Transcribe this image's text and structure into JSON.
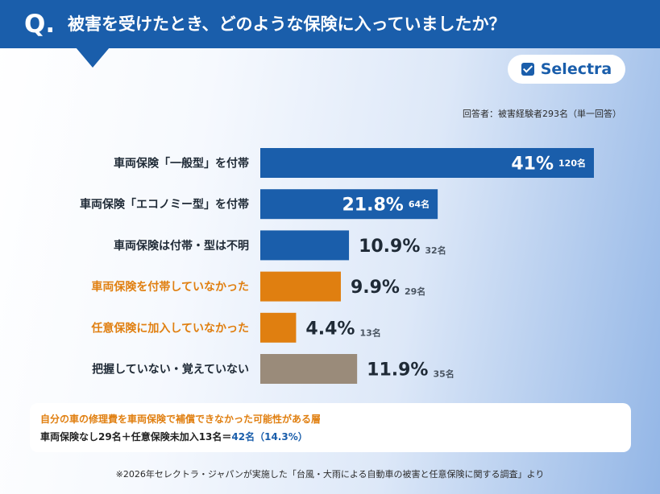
{
  "header": {
    "q_mark": "Q.",
    "title": "被害を受けたとき、どのような保険に入っていましたか？"
  },
  "logo": {
    "text": "Selectra",
    "icon": "checkbox-icon"
  },
  "respondents": "回答者：被害経験者293名（単一回答）",
  "chart_data": {
    "type": "bar",
    "orientation": "horizontal",
    "title": "被害を受けたとき、どのような保険に入っていましたか？",
    "categories": [
      "車両保険「一般型」を付帯",
      "車両保険「エコノミー型」を付帯",
      "車両保険は付帯・型は不明",
      "車両保険を付帯していなかった",
      "任意保険に加入していなかった",
      "把握していない・覚えていない"
    ],
    "values": [
      41,
      21.8,
      10.9,
      9.9,
      4.4,
      11.9
    ],
    "value_labels": [
      "41%",
      "21.8%",
      "10.9%",
      "9.9%",
      "4.4%",
      "11.9%"
    ],
    "counts": [
      "120名",
      "64名",
      "32名",
      "29名",
      "13名",
      "35名"
    ],
    "unit": "%",
    "xlim": [
      0,
      41
    ],
    "grid": false,
    "legend": "none",
    "colors": [
      "#1a5eab",
      "#1a5eab",
      "#1a5eab",
      "#e07f10",
      "#e07f10",
      "#9a8b7a"
    ],
    "label_colors": [
      "#1f2a36",
      "#1f2a36",
      "#1f2a36",
      "#e07f10",
      "#e07f10",
      "#1f2a36"
    ],
    "value_inside": [
      true,
      true,
      false,
      false,
      false,
      false
    ]
  },
  "note": {
    "line1": "自分の車の修理費を車両保険で補償できなかった可能性がある層",
    "line2_prefix": "車両保険なし29名＋任意保険未加入13名＝",
    "line2_highlight": "42名（14.3%）"
  },
  "source": "※2026年セレクトラ・ジャパンが実施した「台風・大雨による自動車の被害と任意保険に関する調査」より"
}
